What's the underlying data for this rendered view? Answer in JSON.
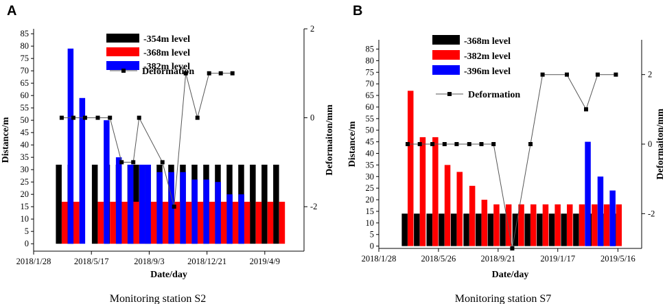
{
  "chart_data": [
    {
      "panel_label": "A",
      "type": "bar+line",
      "caption": "Monitoring station S2",
      "xlabel": "Date/day",
      "ylabel": "Distance/m",
      "y2label": "Deformaiton/mm",
      "xtick_labels": [
        "2018/1/28",
        "2018/5/17",
        "2018/9/3",
        "2018/12/21",
        "2019/4/9"
      ],
      "xtick_days": [
        0,
        109,
        218,
        327,
        436
      ],
      "xlim": [
        0,
        510
      ],
      "ylim": [
        -3,
        87
      ],
      "yticks": [
        0,
        5,
        10,
        15,
        20,
        25,
        30,
        35,
        40,
        45,
        50,
        55,
        60,
        65,
        70,
        75,
        80,
        85
      ],
      "y2lim": [
        -3,
        2
      ],
      "y2ticks": [
        -2,
        0,
        2
      ],
      "bar_days": [
        53,
        75,
        97,
        121,
        144,
        166,
        188,
        199,
        221,
        243,
        265,
        287,
        309,
        331,
        353,
        375,
        397,
        419,
        441,
        463
      ],
      "series": [
        {
          "name": "-354m level",
          "color": "#000000",
          "values": [
            32,
            32,
            null,
            32,
            32,
            32,
            32,
            32,
            32,
            32,
            32,
            32,
            32,
            32,
            32,
            32,
            32,
            32,
            32,
            32
          ]
        },
        {
          "name": "-368m level",
          "color": "#ff0000",
          "values": [
            17,
            17,
            null,
            17,
            17,
            17,
            17,
            17,
            17,
            17,
            17,
            17,
            17,
            17,
            17,
            17,
            17,
            17,
            17,
            17
          ]
        },
        {
          "name": "-382m level",
          "color": "#0000ff",
          "values": [
            79,
            59,
            null,
            50,
            35,
            32,
            32,
            32,
            29,
            29,
            29,
            26,
            26,
            25,
            20,
            20,
            null,
            null,
            null,
            null
          ]
        }
      ],
      "deformation": {
        "name": "Deformation",
        "points": [
          [
            53,
            0
          ],
          [
            75,
            0
          ],
          [
            97,
            0
          ],
          [
            121,
            0
          ],
          [
            144,
            0
          ],
          [
            166,
            -1
          ],
          [
            188,
            -1
          ],
          [
            199,
            0
          ],
          [
            243,
            -1
          ],
          [
            265,
            -2
          ],
          [
            287,
            1
          ],
          [
            309,
            0
          ],
          [
            331,
            1
          ],
          [
            353,
            1
          ],
          [
            375,
            1
          ]
        ]
      },
      "legend_position": "top-center"
    },
    {
      "panel_label": "B",
      "type": "bar+line",
      "caption": "Monitoring station S7",
      "xlabel": "Date/day",
      "ylabel": "Distance/m",
      "y2label": "Deformaiton/mm",
      "xtick_labels": [
        "2018/1/28",
        "2018/5/26",
        "2018/9/21",
        "2019/1/17",
        "2019/5/16"
      ],
      "xtick_days": [
        0,
        118,
        236,
        354,
        473
      ],
      "xlim": [
        0,
        520
      ],
      "ylim": [
        -1,
        89
      ],
      "yticks": [
        0,
        5,
        10,
        15,
        20,
        25,
        30,
        35,
        40,
        45,
        50,
        55,
        60,
        65,
        70,
        75,
        80,
        85
      ],
      "y2lim": [
        -3,
        3
      ],
      "y2ticks": [
        -2,
        0,
        2
      ],
      "bar_days": [
        57,
        81,
        106,
        130,
        154,
        179,
        203,
        227,
        251,
        276,
        300,
        324,
        348,
        372,
        396,
        421,
        445,
        469
      ],
      "series": [
        {
          "name": "-368m level",
          "color": "#000000",
          "values": [
            14,
            14,
            14,
            14,
            14,
            14,
            14,
            14,
            14,
            14,
            14,
            14,
            14,
            14,
            14,
            14,
            14,
            14
          ]
        },
        {
          "name": "-382m level",
          "color": "#ff0000",
          "values": [
            67,
            47,
            47,
            35,
            32,
            26,
            20,
            18,
            18,
            18,
            18,
            18,
            18,
            18,
            18,
            18,
            18,
            18
          ]
        },
        {
          "name": "-396m level",
          "color": "#0000ff",
          "values": [
            null,
            null,
            null,
            null,
            null,
            null,
            null,
            null,
            null,
            null,
            null,
            null,
            null,
            null,
            45,
            30,
            24,
            null
          ]
        }
      ],
      "deformation": {
        "name": "Deformation",
        "points": [
          [
            57,
            0
          ],
          [
            81,
            0
          ],
          [
            106,
            0
          ],
          [
            130,
            0
          ],
          [
            154,
            0
          ],
          [
            179,
            0
          ],
          [
            203,
            0
          ],
          [
            227,
            0
          ],
          [
            264,
            -3
          ],
          [
            300,
            0
          ],
          [
            324,
            2
          ],
          [
            372,
            2
          ],
          [
            410,
            1
          ],
          [
            433,
            2
          ],
          [
            469,
            2
          ]
        ]
      },
      "legend_position": "top-left"
    }
  ]
}
